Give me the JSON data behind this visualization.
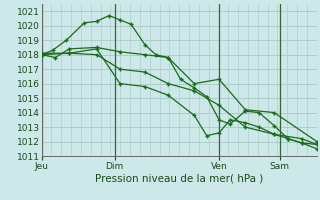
{
  "background_color": "#cce8e8",
  "grid_color": "#b0cccc",
  "line_color": "#1a6b1a",
  "marker_color": "#1a6b1a",
  "xlabel": "Pression niveau de la mer( hPa )",
  "ylim": [
    1011,
    1021.5
  ],
  "yticks": [
    1011,
    1012,
    1013,
    1014,
    1015,
    1016,
    1017,
    1018,
    1019,
    1020,
    1021
  ],
  "x_tick_positions": [
    0.0,
    0.265,
    0.645,
    0.865
  ],
  "x_tick_labels": [
    "Jeu",
    "Dim",
    "Ven",
    "Sam"
  ],
  "series": [
    {
      "x": [
        0.0,
        0.04,
        0.09,
        0.155,
        0.2,
        0.245,
        0.285,
        0.325,
        0.375,
        0.415,
        0.46,
        0.505,
        0.555,
        0.6,
        0.645,
        0.685,
        0.74,
        0.79,
        0.845,
        0.895,
        0.945,
        1.0
      ],
      "y": [
        1018.0,
        1018.3,
        1019.0,
        1020.2,
        1020.3,
        1020.7,
        1020.4,
        1020.1,
        1018.7,
        1018.0,
        1017.8,
        1016.3,
        1015.7,
        1015.1,
        1013.5,
        1013.2,
        1014.1,
        1014.0,
        1013.1,
        1012.2,
        1011.9,
        1011.5
      ]
    },
    {
      "x": [
        0.0,
        0.05,
        0.1,
        0.2,
        0.285,
        0.375,
        0.46,
        0.555,
        0.645,
        0.74,
        0.845,
        1.0
      ],
      "y": [
        1018.0,
        1017.8,
        1018.4,
        1018.5,
        1018.2,
        1018.0,
        1017.8,
        1016.0,
        1016.3,
        1014.2,
        1014.0,
        1012.0
      ]
    },
    {
      "x": [
        0.0,
        0.1,
        0.2,
        0.285,
        0.375,
        0.46,
        0.555,
        0.6,
        0.645,
        0.685,
        0.74,
        0.79,
        0.845,
        0.895,
        0.945,
        1.0
      ],
      "y": [
        1018.0,
        1018.1,
        1018.4,
        1016.0,
        1015.8,
        1015.2,
        1013.8,
        1012.4,
        1012.6,
        1013.5,
        1013.3,
        1013.0,
        1012.5,
        1012.2,
        1011.9,
        1011.8
      ]
    },
    {
      "x": [
        0.0,
        0.1,
        0.2,
        0.285,
        0.375,
        0.46,
        0.555,
        0.645,
        0.74,
        0.845,
        0.945,
        1.0
      ],
      "y": [
        1018.1,
        1018.1,
        1018.0,
        1017.0,
        1016.8,
        1016.0,
        1015.5,
        1014.5,
        1013.0,
        1012.5,
        1012.2,
        1011.8
      ]
    }
  ],
  "vlines_x": [
    0.0,
    0.265,
    0.645,
    0.865
  ]
}
